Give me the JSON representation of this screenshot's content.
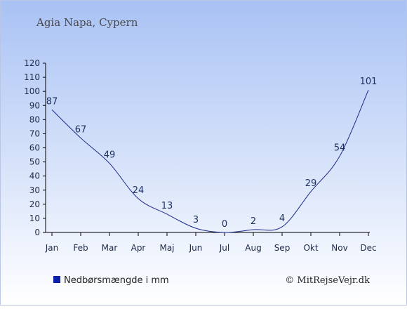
{
  "title": "Agia Napa, Cypern",
  "legend": {
    "label": "Nedbørsmængde i mm",
    "color": "#0b1fa8"
  },
  "credit": "© MitRejseVejr.dk",
  "colors": {
    "line": "#1a2a8a",
    "background_top": "#a9c2f4",
    "background_bottom": "#ffffff",
    "axis": "#000000"
  },
  "chart_data": {
    "type": "line",
    "categories": [
      "Jan",
      "Feb",
      "Mar",
      "Apr",
      "Maj",
      "Jun",
      "Jul",
      "Aug",
      "Sep",
      "Okt",
      "Nov",
      "Dec"
    ],
    "series": [
      {
        "name": "Nedbørsmængde i mm",
        "values": [
          87,
          67,
          49,
          24,
          13,
          3,
          0,
          2,
          4,
          29,
          54,
          101
        ]
      }
    ],
    "ylim": [
      0,
      120
    ],
    "yticks": [
      0,
      10,
      20,
      30,
      40,
      50,
      60,
      70,
      80,
      90,
      100,
      110,
      120
    ],
    "grid": false,
    "legend_position": "bottom-left",
    "data_labels": true
  }
}
